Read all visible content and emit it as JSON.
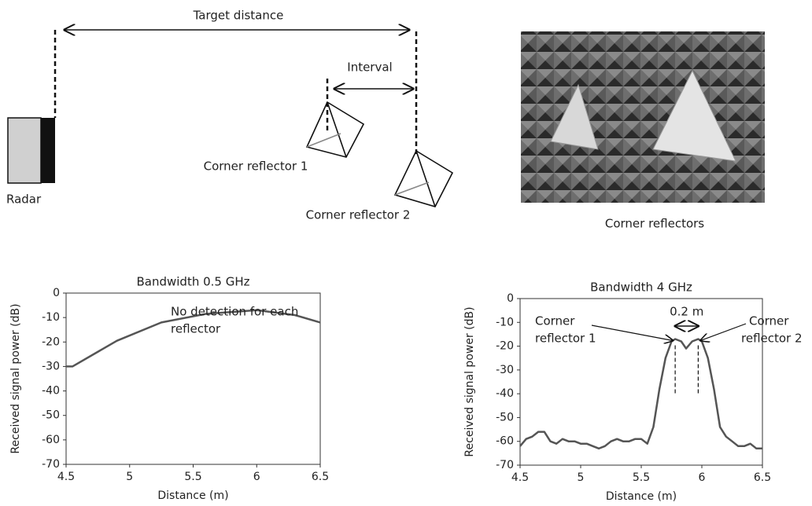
{
  "diagram": {
    "target_distance": "Target distance",
    "interval": "Interval",
    "reflector_1": "Corner reflector 1",
    "reflector_2": "Corner reflector 2",
    "radar": "Radar"
  },
  "photo": {
    "caption": "Corner reflectors"
  },
  "chart_data": [
    {
      "type": "line",
      "title": "Bandwidth 0.5 GHz",
      "xlabel": "Distance (m)",
      "ylabel": "Received signal power (dB)",
      "color": "#555555",
      "x": [
        4.5,
        4.55,
        4.9,
        5.25,
        5.6,
        6.0,
        6.3,
        6.5
      ],
      "values": [
        -30,
        -30,
        -19.5,
        -12,
        -8.5,
        -7,
        -9,
        -12
      ],
      "xlim": [
        4.5,
        6.5
      ],
      "ylim": [
        -70,
        0
      ],
      "xticks": [
        4.5,
        5,
        5.5,
        6,
        6.5
      ],
      "yticks": [
        0,
        -10,
        -20,
        -30,
        -40,
        -50,
        -60,
        -70
      ],
      "annotations": [
        "No detection for each",
        "reflector"
      ]
    },
    {
      "type": "line",
      "title": "Bandwidth 4 GHz",
      "xlabel": "Distance (m)",
      "ylabel": "Received signal power (dB)",
      "color": "#555555",
      "x": [
        4.5,
        4.55,
        4.6,
        4.65,
        4.7,
        4.75,
        4.8,
        4.85,
        4.9,
        4.95,
        5.0,
        5.05,
        5.1,
        5.15,
        5.2,
        5.25,
        5.3,
        5.35,
        5.4,
        5.45,
        5.5,
        5.55,
        5.6,
        5.65,
        5.7,
        5.75,
        5.78,
        5.83,
        5.87,
        5.92,
        5.97,
        6.0,
        6.05,
        6.1,
        6.15,
        6.2,
        6.25,
        6.3,
        6.35,
        6.4,
        6.45,
        6.5
      ],
      "values": [
        -62,
        -59,
        -58,
        -56,
        -56,
        -60,
        -61,
        -59,
        -60,
        -60,
        -61,
        -61,
        -62,
        -63,
        -62,
        -60,
        -59,
        -60,
        -60,
        -59,
        -59,
        -61,
        -54,
        -38,
        -25,
        -18,
        -17,
        -18,
        -21,
        -18,
        -17,
        -18,
        -25,
        -38,
        -54,
        -58,
        -60,
        -62,
        -62,
        -61,
        -63,
        -63
      ],
      "xlim": [
        4.5,
        6.5
      ],
      "ylim": [
        -70,
        0
      ],
      "xticks": [
        4.5,
        5,
        5.5,
        6,
        6.5
      ],
      "yticks": [
        0,
        -10,
        -20,
        -30,
        -40,
        -50,
        -60,
        -70
      ],
      "annotations": [
        "0.2 m",
        "Corner",
        "reflector 1",
        "Corner",
        "reflector 2"
      ]
    }
  ]
}
